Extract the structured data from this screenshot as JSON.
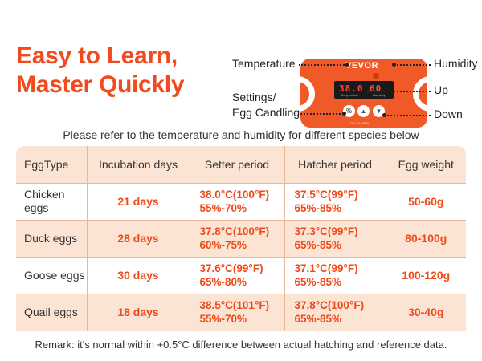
{
  "headline": {
    "line1": "Easy to Learn,",
    "line2": "Master Quickly"
  },
  "panel": {
    "brand": "VEVOR",
    "temp_display": "38.0",
    "humidity_display": "60",
    "temp_sublabel": "Temperature",
    "humidity_sublabel": "Humidity",
    "model": "DZ-CX MENU",
    "buttons": {
      "settings": "%",
      "up": "▲",
      "down": "▼"
    }
  },
  "callouts": {
    "temperature": "Temperature",
    "settings_line1": "Settings/",
    "settings_line2": "Egg Candling",
    "humidity": "Humidity",
    "up": "Up",
    "down": "Down"
  },
  "subtitle": "Please refer to the temperature and humidity for different species below",
  "table": {
    "headers": [
      "EggType",
      "Incubation days",
      "Setter period",
      "Hatcher period",
      "Egg weight"
    ],
    "rows": [
      {
        "egg": "Chicken eggs",
        "days": "21 days",
        "setter_temp": "38.0°C(100°F)",
        "setter_hum": "55%-70%",
        "hatcher_temp": "37.5°C(99°F)",
        "hatcher_hum": "65%-85%",
        "weight": "50-60g"
      },
      {
        "egg": "Duck eggs",
        "days": "28 days",
        "setter_temp": "37.8°C(100°F)",
        "setter_hum": "60%-75%",
        "hatcher_temp": "37.3°C(99°F)",
        "hatcher_hum": "65%-85%",
        "weight": "80-100g"
      },
      {
        "egg": "Goose eggs",
        "days": "30 days",
        "setter_temp": "37.6°C(99°F)",
        "setter_hum": "65%-80%",
        "hatcher_temp": "37.1°C(99°F)",
        "hatcher_hum": "65%-85%",
        "weight": "100-120g"
      },
      {
        "egg": "Quail eggs",
        "days": "18 days",
        "setter_temp": "38.5°C(101°F)",
        "setter_hum": "55%-70%",
        "hatcher_temp": "37.8°C(100°F)",
        "hatcher_hum": "65%-85%",
        "weight": "30-40g"
      }
    ]
  },
  "remark": "Remark: it's normal within +0.5°C difference between actual hatching and reference data.",
  "colors": {
    "accent": "#f04a1e",
    "panel": "#f05a28",
    "table_tint": "#fbe4d3",
    "divider": "#e8b898"
  }
}
